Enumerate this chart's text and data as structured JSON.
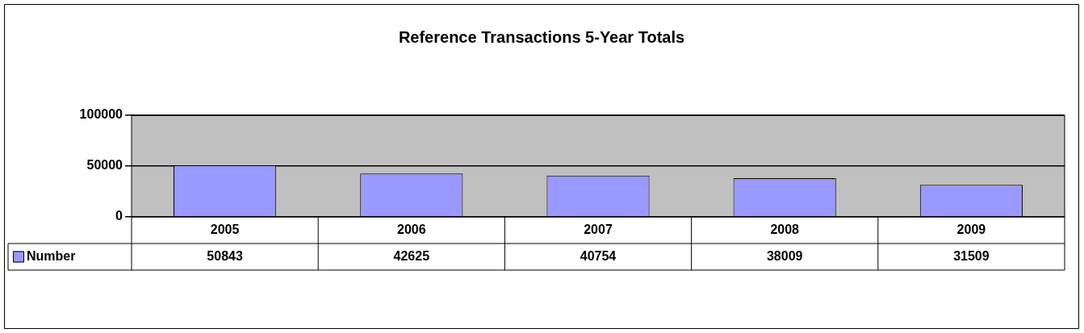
{
  "chart_data": {
    "type": "bar",
    "title": "Reference Transactions 5-Year Totals",
    "categories": [
      "2005",
      "2006",
      "2007",
      "2008",
      "2009"
    ],
    "series": [
      {
        "name": "Number",
        "color": "#9999ff",
        "values": [
          50843,
          42625,
          40754,
          38009,
          31509
        ]
      }
    ],
    "ylim": [
      0,
      100000
    ],
    "yticks": [
      0,
      50000,
      100000
    ],
    "grid": "y",
    "data_labels": true,
    "legend": "bottom left"
  }
}
